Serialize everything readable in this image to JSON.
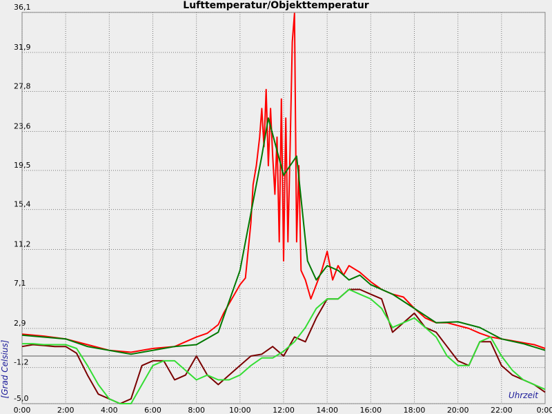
{
  "chart_data": {
    "type": "line",
    "title": "Lufttemperatur/Objekttemperatur",
    "x_label": "Uhrzeit",
    "y_label": "[Grad Celsius]",
    "xlim": [
      0,
      24
    ],
    "ylim": [
      -5,
      36.1
    ],
    "xticks": [
      {
        "value": 0,
        "label": "0:00"
      },
      {
        "value": 2,
        "label": "2:00"
      },
      {
        "value": 4,
        "label": "4:00"
      },
      {
        "value": 6,
        "label": "6:00"
      },
      {
        "value": 8,
        "label": "8:00"
      },
      {
        "value": 10,
        "label": "10:00"
      },
      {
        "value": 12,
        "label": "12:00"
      },
      {
        "value": 14,
        "label": "14:00"
      },
      {
        "value": 16,
        "label": "16:00"
      },
      {
        "value": 18,
        "label": "18:00"
      },
      {
        "value": 20,
        "label": "20:00"
      },
      {
        "value": 22,
        "label": "22:00"
      },
      {
        "value": 24,
        "label": "0:00"
      }
    ],
    "yticks": [
      {
        "value": -5,
        "label": "-5,0"
      },
      {
        "value": -1.2,
        "label": "-1,2"
      },
      {
        "value": 2.9,
        "label": "2,9"
      },
      {
        "value": 7.1,
        "label": "7,1"
      },
      {
        "value": 11.2,
        "label": "11,2"
      },
      {
        "value": 15.4,
        "label": "15,4"
      },
      {
        "value": 19.5,
        "label": "19,5"
      },
      {
        "value": 23.6,
        "label": "23,6"
      },
      {
        "value": 27.8,
        "label": "27,8"
      },
      {
        "value": 31.9,
        "label": "31,9"
      },
      {
        "value": 36.1,
        "label": "36,1"
      }
    ],
    "grid": true,
    "series": [
      {
        "color": "#ff0000",
        "x": [
          0,
          1,
          2,
          3,
          4,
          5,
          6,
          7,
          7.5,
          8,
          8.5,
          9,
          9.25,
          9.5,
          9.75,
          10,
          10.25,
          10.5,
          10.6,
          10.75,
          10.9,
          11,
          11.1,
          11.2,
          11.3,
          11.4,
          11.5,
          11.6,
          11.7,
          11.8,
          11.9,
          12,
          12.1,
          12.2,
          12.3,
          12.4,
          12.5,
          12.6,
          12.7,
          12.8,
          13,
          13.25,
          13.5,
          13.75,
          14,
          14.25,
          14.5,
          14.75,
          15,
          15.5,
          16,
          16.5,
          17,
          17.5,
          18,
          18.5,
          19,
          19.5,
          20,
          20.5,
          21,
          21.5,
          22,
          22.5,
          23,
          23.5,
          24
        ],
        "values": [
          2.3,
          2.1,
          1.8,
          1.2,
          0.6,
          0.4,
          0.8,
          1.0,
          1.5,
          2.0,
          2.4,
          3.3,
          4.5,
          5.5,
          6.5,
          7.5,
          8.2,
          14,
          18,
          20,
          23,
          26,
          22,
          28,
          20,
          26,
          21,
          17,
          23,
          12,
          27,
          10,
          25,
          12,
          22,
          33,
          36,
          12,
          20,
          9,
          8,
          6,
          7.5,
          9,
          11,
          8,
          9.5,
          8.5,
          9.5,
          8.8,
          7.8,
          7,
          6.5,
          6.2,
          5,
          4,
          3.5,
          3.5,
          3.2,
          2.9,
          2.4,
          2.0,
          1.8,
          1.6,
          1.4,
          1.2,
          0.8
        ]
      },
      {
        "color": "#007800",
        "x": [
          0,
          2,
          3,
          5,
          7,
          8,
          9,
          10,
          10.5,
          11,
          11.3,
          12,
          12.6,
          13.1,
          13.5,
          14,
          14.5,
          15,
          15.5,
          16,
          17,
          18,
          19,
          20,
          21,
          22,
          23,
          24
        ],
        "values": [
          2.2,
          1.8,
          1.0,
          0.2,
          1.0,
          1.2,
          2.5,
          9,
          15,
          21,
          25,
          19,
          21,
          10,
          8,
          9.5,
          9,
          8,
          8.5,
          7.5,
          6.5,
          5,
          3.5,
          3.6,
          3,
          1.8,
          1.3,
          0.6
        ]
      },
      {
        "color": "#7a0000",
        "x": [
          0,
          0.5,
          1,
          1.5,
          2,
          2.5,
          3,
          3.5,
          4,
          4.5,
          5,
          5.5,
          6,
          6.5,
          7,
          7.5,
          8,
          8.5,
          9,
          9.5,
          10,
          10.5,
          11,
          11.5,
          12,
          12.5,
          13,
          13.5,
          14,
          14.5,
          15,
          15.5,
          16,
          16.5,
          17,
          17.5,
          18,
          18.5,
          19,
          19.5,
          20,
          20.5,
          21,
          21.5,
          22,
          22.5,
          23,
          23.5,
          24
        ],
        "values": [
          1.0,
          1.2,
          1.1,
          1.0,
          1.0,
          0.3,
          -2,
          -4,
          -4.5,
          -5,
          -4.5,
          -1,
          -0.5,
          -0.5,
          -2.5,
          -2,
          0,
          -2,
          -3,
          -2,
          -1,
          0,
          0.2,
          1,
          0,
          2,
          1.5,
          4,
          6,
          6,
          7,
          7,
          6.5,
          6,
          2.5,
          3.5,
          4.5,
          3,
          2.5,
          1,
          -0.5,
          -1,
          1.5,
          1.5,
          -1,
          -2,
          -2.5,
          -3,
          -3.8
        ]
      },
      {
        "color": "#33dd33",
        "x": [
          0,
          0.5,
          1,
          1.5,
          2,
          2.5,
          3,
          3.5,
          4,
          4.5,
          5,
          5.5,
          6,
          6.5,
          7,
          7.5,
          8,
          8.5,
          9,
          9.5,
          10,
          10.5,
          11,
          11.5,
          12,
          12.5,
          13,
          13.5,
          14,
          14.5,
          15,
          15.5,
          16,
          16.5,
          17,
          17.5,
          18,
          18.5,
          19,
          19.5,
          20,
          20.5,
          21,
          21.5,
          22,
          22.5,
          23,
          23.5,
          24
        ],
        "values": [
          1.3,
          1.3,
          1.2,
          1.2,
          1.2,
          0.8,
          -1,
          -3,
          -4.5,
          -5,
          -5,
          -3,
          -1,
          -0.5,
          -0.5,
          -1.5,
          -2.5,
          -2,
          -2.5,
          -2.5,
          -2,
          -1,
          -0.2,
          -0.2,
          0.5,
          1.5,
          3,
          5,
          6,
          6,
          7,
          6.5,
          6,
          5,
          3,
          3.5,
          4,
          3,
          2,
          0,
          -1,
          -1,
          1.5,
          2,
          0,
          -1.5,
          -2.5,
          -3,
          -3.5
        ]
      }
    ]
  }
}
